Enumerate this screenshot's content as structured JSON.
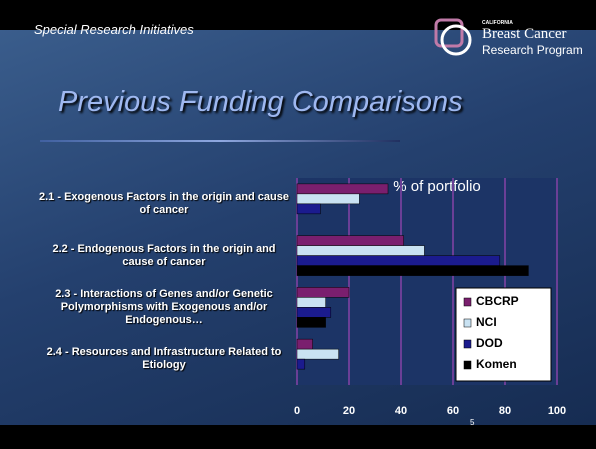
{
  "header": {
    "section": "Special Research Initiatives",
    "logo_small": "CALIFORNIA",
    "logo_line1": "Breast Cancer",
    "logo_line2": "Research Program"
  },
  "slide_title": "Previous Funding Comparisons",
  "slide_number": "5",
  "chart_data": {
    "type": "bar",
    "orientation": "horizontal",
    "title": "% of portfolio",
    "categories": [
      "2.1 - Exogenous Factors in the origin and cause of cancer",
      "2.2 - Endogenous Factors in the origin and cause of cancer",
      "2.3 - Interactions of Genes and/or Genetic Polymorphisms with Exogenous and/or Endogenous…",
      "2.4 - Resources and Infrastructure Related to Etiology"
    ],
    "series": [
      {
        "name": "CBCRP",
        "color": "#7a1f6e",
        "values": [
          35,
          41,
          20,
          6
        ]
      },
      {
        "name": "NCI",
        "color": "#c9e2f2",
        "values": [
          24,
          49,
          11,
          16
        ]
      },
      {
        "name": "DOD",
        "color": "#1b1b8e",
        "values": [
          9,
          78,
          13,
          3
        ]
      },
      {
        "name": "Komen",
        "color": "#000000",
        "values": [
          null,
          89,
          11,
          null
        ]
      }
    ],
    "xlim": [
      0,
      100
    ],
    "xticks": [
      0,
      20,
      40,
      60,
      80,
      100
    ],
    "grid": true,
    "legend": "lower-right"
  }
}
